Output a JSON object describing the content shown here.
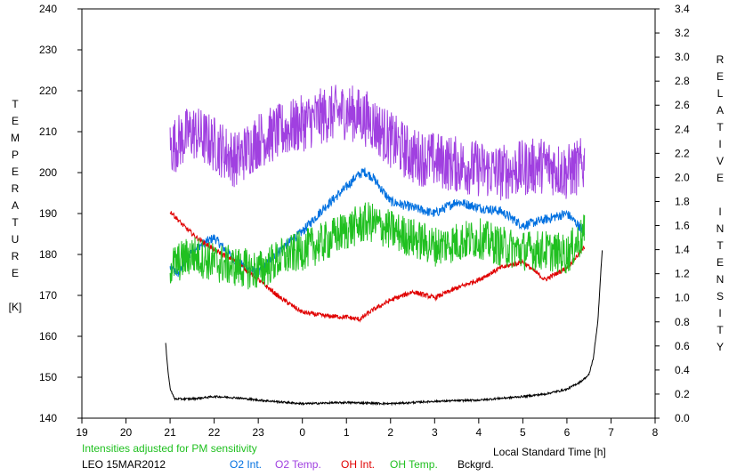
{
  "chart_data": {
    "type": "line",
    "xlabel": "Local Standard Time [h]",
    "x_ticks": [
      "19",
      "20",
      "21",
      "22",
      "23",
      "0",
      "1",
      "2",
      "3",
      "4",
      "5",
      "6",
      "7",
      "8"
    ],
    "x_range": [
      19,
      32
    ],
    "ylabel_left_letters": [
      "T",
      "E",
      "M",
      "P",
      "E",
      "R",
      "A",
      "T",
      "U",
      "R",
      "E",
      "",
      "[K]"
    ],
    "ylabel_right_letters": [
      "R",
      "E",
      "L",
      "A",
      "T",
      "I",
      "V",
      "E",
      "",
      "I",
      "N",
      "T",
      "E",
      "N",
      "S",
      "I",
      "T",
      "Y"
    ],
    "ylim_left": [
      140,
      240
    ],
    "y_ticks_left": [
      "140",
      "150",
      "160",
      "170",
      "180",
      "190",
      "200",
      "210",
      "220",
      "230",
      "240"
    ],
    "ylim_right": [
      0.0,
      3.4
    ],
    "y_ticks_right": [
      "0.0",
      "0.2",
      "0.4",
      "0.6",
      "0.8",
      "1.0",
      "1.2",
      "1.4",
      "1.6",
      "1.8",
      "2.0",
      "2.2",
      "2.4",
      "2.6",
      "2.8",
      "3.0",
      "3.2",
      "3.4"
    ],
    "note": "Intensities adjusted for PM sensitivity",
    "station_date": "LEO 15MAR2012",
    "series": [
      {
        "name": "O2 Int.",
        "color": "#0070e0",
        "axis": "right",
        "noise": 0.04,
        "x": [
          21.0,
          21.2,
          21.5,
          22.0,
          22.5,
          23.0,
          23.5,
          24.0,
          24.5,
          25.0,
          25.2,
          25.4,
          25.6,
          26.0,
          26.5,
          27.0,
          27.5,
          28.0,
          28.5,
          29.0,
          29.5,
          30.0,
          30.4
        ],
        "y": [
          1.25,
          1.2,
          1.4,
          1.5,
          1.3,
          1.2,
          1.4,
          1.55,
          1.75,
          1.92,
          2.0,
          2.05,
          2.0,
          1.8,
          1.75,
          1.7,
          1.8,
          1.75,
          1.72,
          1.6,
          1.65,
          1.7,
          1.55
        ]
      },
      {
        "name": "O2 Temp.",
        "color": "#a040e0",
        "axis": "left",
        "noise": 7,
        "x": [
          21.0,
          21.5,
          22.0,
          22.5,
          23.0,
          23.5,
          24.0,
          24.5,
          25.0,
          25.5,
          26.0,
          26.5,
          27.0,
          27.5,
          28.0,
          28.5,
          29.0,
          29.5,
          30.0,
          30.4
        ],
        "y": [
          206,
          210,
          207,
          203,
          208,
          210,
          212,
          214,
          215,
          213,
          208,
          204,
          203,
          202,
          201,
          200,
          201,
          202,
          200,
          202
        ]
      },
      {
        "name": "OH Int.",
        "color": "#e00000",
        "axis": "right",
        "noise": 0.02,
        "x": [
          21.0,
          21.3,
          21.6,
          22.0,
          22.5,
          23.0,
          23.5,
          24.0,
          24.5,
          25.0,
          25.3,
          25.6,
          26.0,
          26.5,
          27.0,
          27.5,
          28.0,
          28.5,
          29.0,
          29.5,
          30.0,
          30.4
        ],
        "y": [
          1.72,
          1.6,
          1.5,
          1.4,
          1.3,
          1.15,
          1.0,
          0.88,
          0.85,
          0.84,
          0.82,
          0.9,
          0.98,
          1.05,
          1.0,
          1.08,
          1.15,
          1.25,
          1.3,
          1.15,
          1.25,
          1.42
        ]
      },
      {
        "name": "OH Temp.",
        "color": "#20c020",
        "axis": "left",
        "noise": 5,
        "x": [
          21.0,
          21.5,
          22.0,
          22.5,
          23.0,
          23.5,
          24.0,
          24.5,
          25.0,
          25.5,
          26.0,
          26.5,
          27.0,
          27.5,
          28.0,
          28.5,
          29.0,
          29.5,
          30.0,
          30.4
        ],
        "y": [
          177,
          180,
          178,
          177,
          176,
          179,
          181,
          183,
          186,
          188,
          186,
          184,
          182,
          183,
          184,
          182,
          181,
          181,
          180,
          185
        ]
      },
      {
        "name": "Bckgrd.",
        "color": "#000000",
        "axis": "right",
        "noise": 0.008,
        "x": [
          20.9,
          20.95,
          21.0,
          21.1,
          21.5,
          22.0,
          22.5,
          23.0,
          24.0,
          25.0,
          26.0,
          27.0,
          28.0,
          29.0,
          29.5,
          30.0,
          30.3,
          30.5,
          30.6,
          30.7,
          30.8
        ],
        "y": [
          0.62,
          0.4,
          0.25,
          0.16,
          0.16,
          0.18,
          0.17,
          0.15,
          0.12,
          0.13,
          0.12,
          0.14,
          0.15,
          0.18,
          0.2,
          0.24,
          0.3,
          0.36,
          0.5,
          0.8,
          1.4
        ]
      }
    ]
  }
}
